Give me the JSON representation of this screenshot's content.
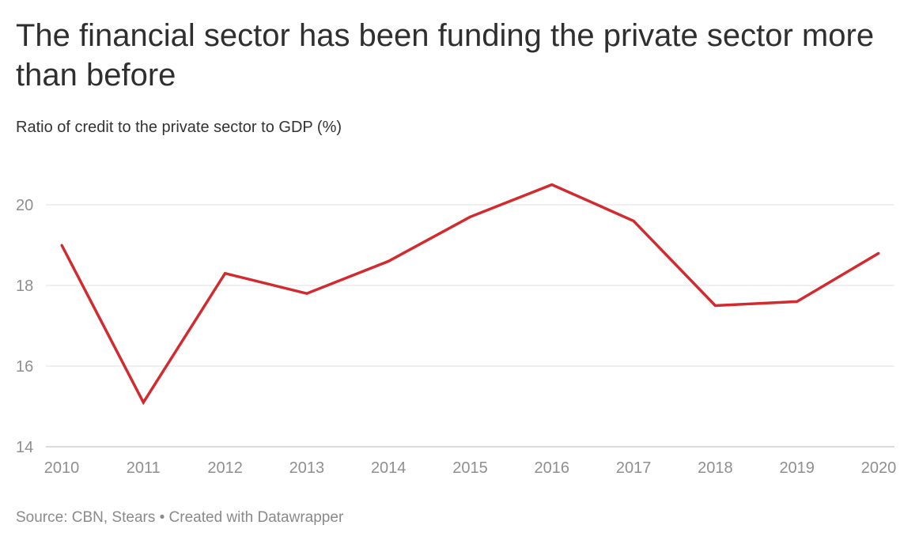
{
  "header": {
    "title": "The financial sector has been funding the private sector more than before",
    "subtitle": "Ratio of credit to the private sector to GDP (%)"
  },
  "footer": {
    "source": "Source: CBN, Stears • Created with Datawrapper"
  },
  "colors": {
    "line": "#d12a2f",
    "grid": "#e1e1e1",
    "axis_text": "#8f8f8f"
  },
  "chart_data": {
    "type": "line",
    "title": "The financial sector has been funding the private sector more than before",
    "subtitle": "Ratio of credit to the private sector to GDP (%)",
    "x": [
      "2010",
      "2011",
      "2012",
      "2013",
      "2014",
      "2015",
      "2016",
      "2017",
      "2018",
      "2019",
      "2020"
    ],
    "series": [
      {
        "values": [
          19.0,
          15.1,
          18.3,
          17.8,
          18.6,
          19.7,
          20.5,
          19.6,
          17.5,
          17.6,
          18.8
        ]
      }
    ],
    "ylim": [
      14,
      21
    ],
    "yticks": [
      "14",
      "16",
      "18",
      "20"
    ],
    "grid": true,
    "legend": "none"
  }
}
